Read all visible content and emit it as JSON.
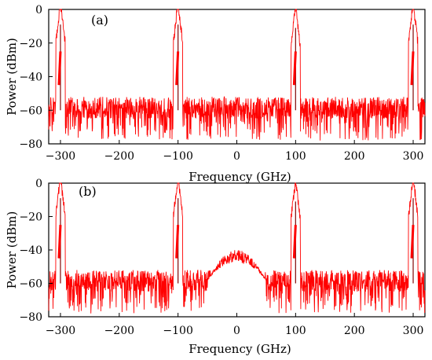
{
  "chart_data": [
    {
      "type": "line",
      "panel_label": "(a)",
      "xlabel": "Frequency (GHz)",
      "ylabel": "Power (dBm)",
      "xlim": [
        -320,
        320
      ],
      "ylim": [
        -80,
        0
      ],
      "xticks": [
        -300,
        -200,
        -100,
        0,
        100,
        200,
        300
      ],
      "yticks": [
        0,
        -20,
        -40,
        -60,
        -80
      ],
      "xtick_labels": [
        "−300",
        "−200",
        "−100",
        "0",
        "100",
        "200",
        "300"
      ],
      "ytick_labels": [
        "0",
        "−20",
        "−40",
        "−60",
        "−80"
      ],
      "grid": false,
      "series": [
        {
          "color": "#ff0000",
          "noise_floor_dbm": [
            -65,
            -52
          ],
          "peaks": [
            {
              "x": -300,
              "y": -9
            },
            {
              "x": -100,
              "y": -9
            },
            {
              "x": 100,
              "y": -11
            },
            {
              "x": 300,
              "y": -9
            }
          ]
        }
      ]
    },
    {
      "type": "line",
      "panel_label": "(b)",
      "xlabel": "Frequency (GHz)",
      "ylabel": "Power (dBm)",
      "xlim": [
        -320,
        320
      ],
      "ylim": [
        -80,
        0
      ],
      "xticks": [
        -300,
        -200,
        -100,
        0,
        100,
        200,
        300
      ],
      "yticks": [
        0,
        -20,
        -40,
        -60,
        -80
      ],
      "xtick_labels": [
        "−300",
        "−200",
        "−100",
        "0",
        "100",
        "200",
        "300"
      ],
      "ytick_labels": [
        "0",
        "−20",
        "−40",
        "−60",
        "−80"
      ],
      "grid": false,
      "series": [
        {
          "color": "#ff0000",
          "noise_floor_dbm": [
            -65,
            -52
          ],
          "central_hump": {
            "x_range": [
              -50,
              50
            ],
            "top_dbm": -40
          },
          "peaks": [
            {
              "x": -300,
              "y": -9
            },
            {
              "x": -100,
              "y": -9
            },
            {
              "x": 100,
              "y": -11
            },
            {
              "x": 300,
              "y": -9
            }
          ]
        }
      ]
    }
  ]
}
